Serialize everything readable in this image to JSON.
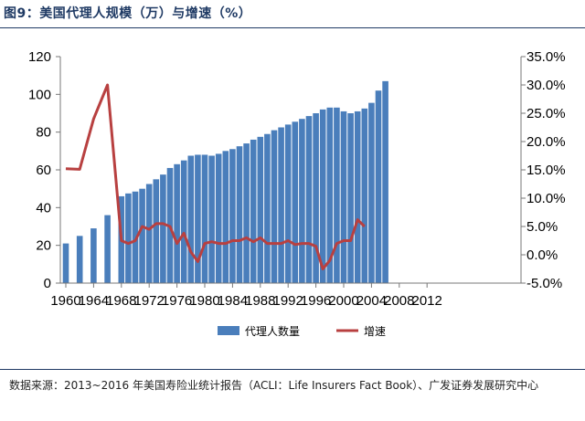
{
  "title": "图9：美国代理人规模（万）与增速（%）",
  "source": "数据来源：2013~2016 年美国寿险业统计报告（ACLI：Life Insurers Fact Book）、广发证券发展研究中心",
  "colors": {
    "bar": "#4a7ebb",
    "line": "#b84040",
    "rule": "#1f3a64"
  },
  "chart_data": {
    "type": "bar",
    "title": "美国代理人规模（万）与增速（%）",
    "xlabel": "",
    "ylabel": "",
    "categories": [
      1960,
      1961,
      1962,
      1963,
      1964,
      1965,
      1966,
      1967,
      1968,
      1969,
      1970,
      1971,
      1972,
      1973,
      1974,
      1975,
      1976,
      1977,
      1978,
      1979,
      1980,
      1981,
      1982,
      1983,
      1984,
      1985,
      1986,
      1987,
      1988,
      1989,
      1990,
      1991,
      1992,
      1993,
      1994,
      1995,
      1996,
      1997,
      1998,
      1999,
      2000,
      2001,
      2002,
      2003,
      2004,
      2005,
      2006,
      2007,
      2008,
      2009,
      2010,
      2011,
      2012,
      2013,
      2014
    ],
    "x_ticks": [
      "1960",
      "1964",
      "1968",
      "1972",
      "1976",
      "1980",
      "1984",
      "1988",
      "1992",
      "1996",
      "2000",
      "2004",
      "2008",
      "2012"
    ],
    "x_tick_years": [
      1960,
      1964,
      1968,
      1972,
      1976,
      1980,
      1984,
      1988,
      1992,
      1996,
      2000,
      2004,
      2008,
      2012
    ],
    "y_left_ticks": [
      "0",
      "20",
      "40",
      "60",
      "80",
      "100",
      "120"
    ],
    "y_left_lim": [
      0,
      120
    ],
    "y_right_ticks": [
      "-5.0%",
      "0.0%",
      "5.0%",
      "10.0%",
      "15.0%",
      "20.0%",
      "25.0%",
      "30.0%",
      "35.0%"
    ],
    "y_right_lim": [
      -5,
      35
    ],
    "series": [
      {
        "name": "代理人数量",
        "type": "bar",
        "axis": "left",
        "points": [
          {
            "x": 1960,
            "y": 21
          },
          {
            "x": 1962,
            "y": 25
          },
          {
            "x": 1964,
            "y": 29
          },
          {
            "x": 1966,
            "y": 36
          },
          {
            "x": 1968,
            "y": 46
          },
          {
            "x": 1969,
            "y": 47.5
          },
          {
            "x": 1970,
            "y": 48.5
          },
          {
            "x": 1971,
            "y": 50
          },
          {
            "x": 1972,
            "y": 52.5
          },
          {
            "x": 1973,
            "y": 55
          },
          {
            "x": 1974,
            "y": 57.5
          },
          {
            "x": 1975,
            "y": 61
          },
          {
            "x": 1976,
            "y": 63
          },
          {
            "x": 1977,
            "y": 65
          },
          {
            "x": 1978,
            "y": 67.5
          },
          {
            "x": 1979,
            "y": 68
          },
          {
            "x": 1980,
            "y": 68
          },
          {
            "x": 1981,
            "y": 67.5
          },
          {
            "x": 1982,
            "y": 68.5
          },
          {
            "x": 1983,
            "y": 70
          },
          {
            "x": 1984,
            "y": 71
          },
          {
            "x": 1985,
            "y": 72.5
          },
          {
            "x": 1986,
            "y": 74
          },
          {
            "x": 1987,
            "y": 76
          },
          {
            "x": 1988,
            "y": 77.5
          },
          {
            "x": 1989,
            "y": 79
          },
          {
            "x": 1990,
            "y": 81
          },
          {
            "x": 1991,
            "y": 82.5
          },
          {
            "x": 1992,
            "y": 84
          },
          {
            "x": 1993,
            "y": 85.5
          },
          {
            "x": 1994,
            "y": 87
          },
          {
            "x": 1995,
            "y": 88.5
          },
          {
            "x": 1996,
            "y": 90
          },
          {
            "x": 1997,
            "y": 92
          },
          {
            "x": 1998,
            "y": 93
          },
          {
            "x": 1999,
            "y": 93
          },
          {
            "x": 2000,
            "y": 91
          },
          {
            "x": 2001,
            "y": 90
          },
          {
            "x": 2002,
            "y": 91
          },
          {
            "x": 2003,
            "y": 92.5
          },
          {
            "x": 2004,
            "y": 95.5
          },
          {
            "x": 2005,
            "y": 102
          },
          {
            "x": 2006,
            "y": 107
          }
        ]
      },
      {
        "name": "增速",
        "type": "line",
        "axis": "right",
        "points": [
          {
            "x": 1960,
            "y": 15.2
          },
          {
            "x": 1962,
            "y": 15.1
          },
          {
            "x": 1964,
            "y": 24
          },
          {
            "x": 1966,
            "y": 30
          },
          {
            "x": 1968,
            "y": 2.5
          },
          {
            "x": 1969,
            "y": 2
          },
          {
            "x": 1970,
            "y": 2.5
          },
          {
            "x": 1971,
            "y": 5
          },
          {
            "x": 1972,
            "y": 4.5
          },
          {
            "x": 1973,
            "y": 5.5
          },
          {
            "x": 1974,
            "y": 5.5
          },
          {
            "x": 1975,
            "y": 5
          },
          {
            "x": 1976,
            "y": 2
          },
          {
            "x": 1977,
            "y": 3.8
          },
          {
            "x": 1978,
            "y": 0.5
          },
          {
            "x": 1979,
            "y": -1.2
          },
          {
            "x": 1980,
            "y": 2
          },
          {
            "x": 1981,
            "y": 2.3
          },
          {
            "x": 1982,
            "y": 2
          },
          {
            "x": 1983,
            "y": 2
          },
          {
            "x": 1984,
            "y": 2.5
          },
          {
            "x": 1985,
            "y": 2.5
          },
          {
            "x": 1986,
            "y": 3
          },
          {
            "x": 1987,
            "y": 2.3
          },
          {
            "x": 1988,
            "y": 3
          },
          {
            "x": 1989,
            "y": 2
          },
          {
            "x": 1990,
            "y": 2
          },
          {
            "x": 1991,
            "y": 2
          },
          {
            "x": 1992,
            "y": 2.5
          },
          {
            "x": 1993,
            "y": 1.8
          },
          {
            "x": 1994,
            "y": 2
          },
          {
            "x": 1995,
            "y": 2
          },
          {
            "x": 1996,
            "y": 1.5
          },
          {
            "x": 1997,
            "y": -2.5
          },
          {
            "x": 1998,
            "y": -1
          },
          {
            "x": 1999,
            "y": 2
          },
          {
            "x": 2000,
            "y": 2.5
          },
          {
            "x": 2001,
            "y": 2.5
          },
          {
            "x": 2002,
            "y": 6.2
          },
          {
            "x": 2003,
            "y": 5
          }
        ]
      }
    ],
    "legend": [
      {
        "label": "代理人数量",
        "kind": "bar"
      },
      {
        "label": "增速",
        "kind": "line"
      }
    ],
    "legend_position": "bottom-center",
    "grid": false
  }
}
